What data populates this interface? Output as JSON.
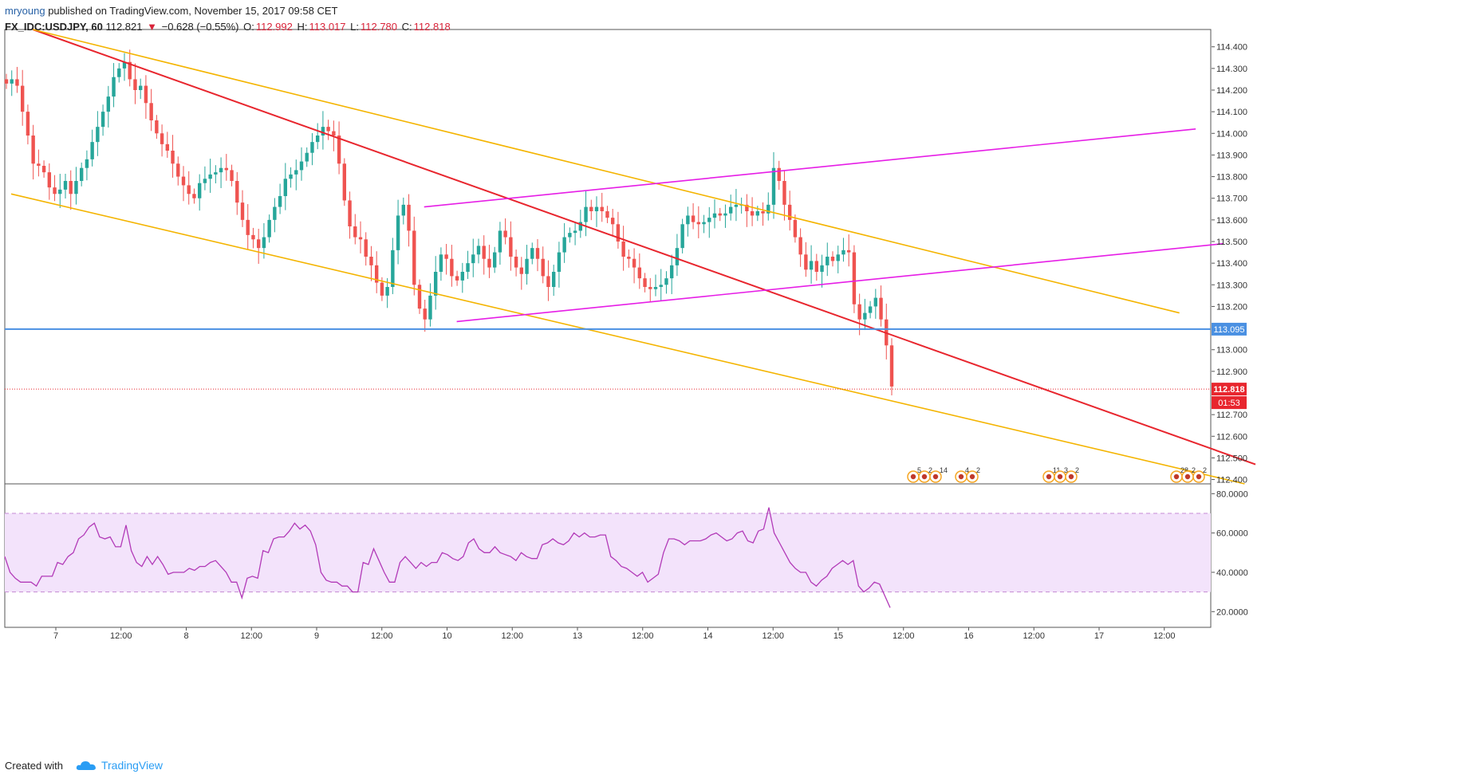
{
  "header": {
    "author": "mryoung",
    "published": "published on TradingView.com, November 15, 2017 09:58 CET",
    "symbol": "FX_IDC:USDJPY, 60",
    "last": "112.821",
    "change": "−0.628 (−0.55%)",
    "open_label": "O:",
    "open": "112.992",
    "high_label": "H:",
    "high": "113.017",
    "low_label": "L:",
    "low": "112.780",
    "close_label": "C:",
    "close": "112.818"
  },
  "footer": {
    "created_with": "Created with",
    "brand": "TradingView"
  },
  "colors": {
    "up": "#26a69a",
    "down": "#ef5350",
    "red_line": "#e8262e",
    "orange_line": "#f4b400",
    "magenta_line": "#e61ee6",
    "hline": "#4a90e2",
    "rsi": "#b23ab8",
    "rsi_band": "#f3e3fb"
  },
  "chart_data": [
    {
      "type": "candlestick",
      "symbol": "FX_IDC:USDJPY",
      "interval": "60",
      "x_tick_labels": [
        "7",
        "12:00",
        "8",
        "12:00",
        "9",
        "12:00",
        "10",
        "12:00",
        "13",
        "12:00",
        "14",
        "12:00",
        "15",
        "12:00",
        "16",
        "12:00",
        "17",
        "12:00"
      ],
      "y_tick_labels": [
        "114.400",
        "114.300",
        "114.200",
        "114.100",
        "114.000",
        "113.900",
        "113.800",
        "113.700",
        "113.600",
        "113.500",
        "113.400",
        "113.300",
        "113.200",
        "113.095",
        "113.000",
        "112.900",
        "112.818",
        "112.700",
        "112.600",
        "112.500",
        "112.400"
      ],
      "ylim": [
        112.38,
        114.48
      ],
      "horizontal_line": 113.095,
      "last_price": 112.818,
      "last_price_label": "112.818",
      "countdown": "01:53",
      "close_series": [
        114.23,
        114.25,
        114.22,
        114.1,
        113.99,
        113.86,
        113.85,
        113.82,
        113.75,
        113.72,
        113.74,
        113.78,
        113.72,
        113.78,
        113.84,
        113.88,
        113.96,
        114.03,
        114.1,
        114.17,
        114.26,
        114.3,
        114.33,
        114.25,
        114.2,
        114.22,
        114.14,
        114.06,
        114.0,
        113.95,
        113.92,
        113.86,
        113.8,
        113.76,
        113.72,
        113.7,
        113.77,
        113.79,
        113.81,
        113.82,
        113.84,
        113.83,
        113.78,
        113.68,
        113.6,
        113.53,
        113.51,
        113.47,
        113.52,
        113.6,
        113.66,
        113.71,
        113.79,
        113.81,
        113.83,
        113.87,
        113.91,
        113.96,
        113.99,
        114.03,
        114.01,
        113.99,
        113.86,
        113.69,
        113.57,
        113.52,
        113.51,
        113.43,
        113.39,
        113.31,
        113.25,
        113.29,
        113.46,
        113.62,
        113.67,
        113.55,
        113.3,
        113.19,
        113.14,
        113.25,
        113.36,
        113.44,
        113.42,
        113.34,
        113.32,
        113.36,
        113.4,
        113.44,
        113.48,
        113.42,
        113.38,
        113.45,
        113.55,
        113.52,
        113.43,
        113.38,
        113.35,
        113.42,
        113.47,
        113.42,
        113.34,
        113.29,
        113.36,
        113.45,
        113.52,
        113.54,
        113.55,
        113.59,
        113.66,
        113.64,
        113.66,
        113.64,
        113.61,
        113.58,
        113.5,
        113.43,
        113.42,
        113.38,
        113.33,
        113.29,
        113.28,
        113.29,
        113.3,
        113.33,
        113.39,
        113.47,
        113.58,
        113.62,
        113.59,
        113.58,
        113.59,
        113.61,
        113.63,
        113.62,
        113.63,
        113.66,
        113.67,
        113.67,
        113.64,
        113.62,
        113.64,
        113.63,
        113.67,
        113.84,
        113.78,
        113.67,
        113.6,
        113.52,
        113.44,
        113.37,
        113.41,
        113.36,
        113.39,
        113.43,
        113.41,
        113.44,
        113.46,
        113.45,
        113.21,
        113.14,
        113.17,
        113.2,
        113.24,
        113.14,
        113.02,
        112.83
      ],
      "drawn_lines": [
        {
          "name": "descending-trendline",
          "color": "red",
          "points": [
            [
              "Nov 6 22:00",
              114.48
            ],
            [
              "Nov 16 07:00",
              112.47
            ]
          ]
        },
        {
          "name": "channel-upper",
          "color": "orange",
          "points": [
            [
              "Nov 6 22:00",
              114.48
            ],
            [
              "Nov 15 17:00",
              113.17
            ]
          ]
        },
        {
          "name": "channel-lower",
          "color": "orange",
          "points": [
            [
              "Nov 6 18:00",
              113.72
            ],
            [
              "Nov 16 05:00",
              112.38
            ]
          ]
        },
        {
          "name": "rising-channel-upper",
          "color": "magenta",
          "points": [
            [
              "Nov 9 22:00",
              113.66
            ],
            [
              "Nov 15 20:00",
              114.02
            ]
          ]
        },
        {
          "name": "rising-channel-lower",
          "color": "magenta",
          "points": [
            [
              "Nov 10 04:00",
              113.13
            ],
            [
              "Nov 16 01:00",
              113.49
            ]
          ]
        }
      ],
      "event_markers": [
        {
          "group": "Nov 15 a",
          "labels": [
            "5",
            "2",
            "14"
          ]
        },
        {
          "group": "Nov 15 b",
          "labels": [
            "4",
            "2"
          ]
        },
        {
          "group": "Nov 16",
          "labels": [
            "11",
            "3",
            "2"
          ]
        },
        {
          "group": "Nov 17",
          "labels": [
            "28",
            "2",
            "2"
          ]
        }
      ]
    },
    {
      "type": "line",
      "indicator": "RSI",
      "y_tick_labels": [
        "80.0000",
        "60.0000",
        "40.0000",
        "20.0000"
      ],
      "ylim": [
        12,
        85
      ],
      "band": [
        30,
        70
      ],
      "values": [
        48,
        40,
        37,
        35,
        35,
        35,
        33,
        38,
        38,
        38,
        45,
        44,
        48,
        50,
        57,
        59,
        63,
        65,
        58,
        57,
        58,
        53,
        53,
        64,
        51,
        45,
        43,
        48,
        44,
        48,
        44,
        39,
        40,
        40,
        40,
        42,
        41,
        43,
        43,
        45,
        46,
        43,
        40,
        35,
        35,
        27,
        37,
        38,
        37,
        51,
        50,
        57,
        58,
        58,
        61,
        65,
        62,
        64,
        61,
        54,
        40,
        36,
        35,
        35,
        33,
        33,
        30,
        30,
        45,
        44,
        52,
        46,
        40,
        35,
        35,
        45,
        48,
        45,
        42,
        45,
        43,
        45,
        45,
        50,
        49,
        47,
        46,
        48,
        55,
        57,
        52,
        50,
        50,
        53,
        50,
        49,
        48,
        46,
        50,
        48,
        47,
        47,
        54,
        55,
        57,
        55,
        54,
        56,
        60,
        58,
        60,
        58,
        58,
        59,
        59,
        48,
        46,
        43,
        42,
        40,
        38,
        40,
        35,
        37,
        39,
        50,
        57,
        57,
        56,
        54,
        56,
        56,
        56,
        57,
        59,
        60,
        58,
        56,
        57,
        60,
        61,
        56,
        55,
        61,
        62,
        73,
        60,
        55,
        50,
        45,
        42,
        40,
        40,
        35,
        33,
        36,
        38,
        42,
        44,
        46,
        44,
        46,
        33,
        30,
        32,
        35,
        34,
        28,
        22
      ]
    }
  ]
}
